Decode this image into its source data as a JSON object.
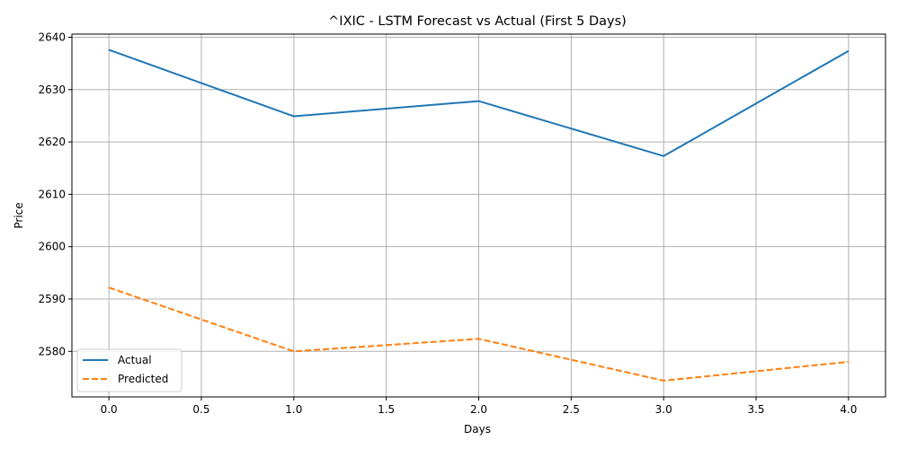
{
  "chart_data": {
    "type": "line",
    "title": "^IXIC - LSTM Forecast vs Actual (First 5 Days)",
    "xlabel": "Days",
    "ylabel": "Price",
    "x": [
      0,
      1,
      2,
      3,
      4
    ],
    "xlim": [
      -0.2,
      4.2
    ],
    "ylim": [
      2571.3,
      2640.6
    ],
    "xticks": [
      0.0,
      0.5,
      1.0,
      1.5,
      2.0,
      2.5,
      3.0,
      3.5,
      4.0
    ],
    "xtick_labels": [
      "0.0",
      "0.5",
      "1.0",
      "1.5",
      "2.0",
      "2.5",
      "3.0",
      "3.5",
      "4.0"
    ],
    "yticks": [
      2580,
      2590,
      2600,
      2610,
      2620,
      2630,
      2640
    ],
    "ytick_labels": [
      "2580",
      "2590",
      "2600",
      "2610",
      "2620",
      "2630",
      "2640"
    ],
    "grid": true,
    "legend_position": "lower-left",
    "series": [
      {
        "name": "Actual",
        "values": [
          2637.6,
          2624.9,
          2627.8,
          2617.3,
          2637.4
        ],
        "color": "#1f77b4",
        "style": "solid"
      },
      {
        "name": "Predicted",
        "values": [
          2592.2,
          2580.0,
          2582.4,
          2574.4,
          2578.0
        ],
        "color": "#ff7f0e",
        "style": "dashed"
      }
    ]
  }
}
